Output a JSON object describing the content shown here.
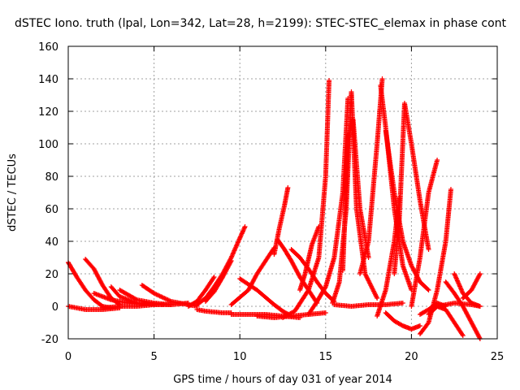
{
  "chart_data": {
    "type": "scatter",
    "title": "dSTEC Iono. truth (lpal, Lon=342, Lat=28, h=2199): STEC-STEC_elemax in phase cont",
    "xlabel": "GPS time / hours of day 031 of year 2014",
    "ylabel": "dSTEC  / TECUs",
    "xlim": [
      0,
      25
    ],
    "ylim": [
      -20,
      160
    ],
    "xticks": [
      0,
      5,
      10,
      15,
      20,
      25
    ],
    "yticks": [
      -20,
      0,
      20,
      40,
      60,
      80,
      100,
      120,
      140,
      160
    ],
    "grid": true,
    "marker": "plus",
    "color": "#ff0000",
    "arcs": [
      {
        "x": [
          0.0,
          0.5,
          1.0,
          1.5,
          2.0,
          2.5
        ],
        "y": [
          27,
          18,
          10,
          4,
          0,
          -1
        ]
      },
      {
        "x": [
          1.0,
          1.5,
          2.0,
          2.5,
          3.0
        ],
        "y": [
          29,
          23,
          13,
          5,
          1
        ]
      },
      {
        "x": [
          0.0,
          0.5,
          1.0,
          2.0,
          3.0
        ],
        "y": [
          0,
          -1,
          -2,
          -2,
          -1
        ]
      },
      {
        "x": [
          1.5,
          2.5,
          3.5,
          4.5
        ],
        "y": [
          8,
          4,
          2,
          1
        ]
      },
      {
        "x": [
          2.5,
          3.0,
          4.0,
          5.5
        ],
        "y": [
          12,
          6,
          2,
          1
        ]
      },
      {
        "x": [
          3.0,
          4.0,
          5.0,
          6.0
        ],
        "y": [
          10,
          4,
          2,
          1
        ]
      },
      {
        "x": [
          4.3,
          5.0,
          6.0,
          7.0,
          7.5
        ],
        "y": [
          13,
          8,
          3,
          1,
          0
        ]
      },
      {
        "x": [
          2.0,
          3.0,
          4.0,
          5.0,
          6.0,
          7.0
        ],
        "y": [
          -1,
          0,
          0,
          1,
          1,
          2
        ]
      },
      {
        "x": [
          7.0,
          7.5,
          8.0,
          8.5
        ],
        "y": [
          0,
          3,
          10,
          18
        ]
      },
      {
        "x": [
          7.5,
          8.0,
          8.5,
          9.0,
          9.5,
          10.0,
          10.3
        ],
        "y": [
          1,
          5,
          12,
          20,
          30,
          42,
          49
        ]
      },
      {
        "x": [
          8.0,
          8.5,
          9.0,
          9.5
        ],
        "y": [
          3,
          9,
          18,
          28
        ]
      },
      {
        "x": [
          7.5,
          8.0,
          9.0,
          9.5
        ],
        "y": [
          -2,
          -3,
          -4,
          -4
        ]
      },
      {
        "x": [
          9.5,
          10.5,
          11.5,
          12.5,
          13.5
        ],
        "y": [
          -5,
          -5,
          -5,
          -6,
          -7
        ]
      },
      {
        "x": [
          9.5,
          10.5,
          11.0,
          11.5,
          12.0
        ],
        "y": [
          1,
          10,
          20,
          28,
          36
        ]
      },
      {
        "x": [
          10.0,
          11.0,
          12.0,
          12.5,
          13.0
        ],
        "y": [
          17,
          10,
          1,
          -3,
          -6
        ]
      },
      {
        "x": [
          12.0,
          12.3,
          12.6,
          12.8
        ],
        "y": [
          32,
          48,
          62,
          73
        ]
      },
      {
        "x": [
          12.2,
          12.6,
          13.0,
          13.5,
          14.0,
          14.5
        ],
        "y": [
          41,
          35,
          28,
          18,
          10,
          2
        ]
      },
      {
        "x": [
          11.0,
          12.0,
          13.0,
          14.0,
          15.0
        ],
        "y": [
          -6,
          -7,
          -6,
          -5,
          -4
        ]
      },
      {
        "x": [
          13.5,
          13.8,
          14.2,
          14.6
        ],
        "y": [
          10,
          20,
          38,
          49
        ]
      },
      {
        "x": [
          13.0,
          13.5,
          14.0,
          14.5,
          15.0,
          15.5
        ],
        "y": [
          35,
          30,
          23,
          15,
          8,
          3
        ]
      },
      {
        "x": [
          12.5,
          13.2,
          14.0,
          14.6,
          15.0,
          15.2
        ],
        "y": [
          -7,
          -3,
          10,
          30,
          80,
          139
        ]
      },
      {
        "x": [
          14.0,
          14.5,
          15.0,
          15.5,
          16.0,
          16.3
        ],
        "y": [
          -5,
          3,
          12,
          30,
          70,
          128
        ]
      },
      {
        "x": [
          15.4,
          15.8,
          16.2,
          16.5,
          16.8,
          17.3,
          18.0
        ],
        "y": [
          2,
          15,
          60,
          132,
          60,
          20,
          5
        ]
      },
      {
        "x": [
          16.0,
          16.3,
          16.6,
          17.0,
          17.5
        ],
        "y": [
          22,
          103,
          115,
          60,
          30
        ]
      },
      {
        "x": [
          15.5,
          16.5,
          17.5,
          18.5,
          19.5
        ],
        "y": [
          1,
          0,
          1,
          1,
          2
        ]
      },
      {
        "x": [
          17.0,
          17.5,
          18.0,
          18.3
        ],
        "y": [
          20,
          40,
          100,
          140
        ]
      },
      {
        "x": [
          18.2,
          18.5,
          19.0,
          19.5,
          20.0
        ],
        "y": [
          136,
          110,
          60,
          25,
          10
        ]
      },
      {
        "x": [
          18.5,
          19.0,
          19.5,
          20.0,
          20.5,
          21.0
        ],
        "y": [
          108,
          70,
          40,
          25,
          15,
          10
        ]
      },
      {
        "x": [
          18.5,
          19.0,
          19.5,
          20.0,
          20.5
        ],
        "y": [
          -4,
          -9,
          -12,
          -14,
          -12
        ]
      },
      {
        "x": [
          18.0,
          18.5,
          19.0,
          19.3
        ],
        "y": [
          -6,
          10,
          40,
          67
        ]
      },
      {
        "x": [
          19.0,
          19.3,
          19.6,
          20.0,
          20.5,
          21.0
        ],
        "y": [
          20,
          55,
          125,
          100,
          65,
          35
        ]
      },
      {
        "x": [
          20.0,
          20.5,
          21.0,
          21.5
        ],
        "y": [
          0,
          30,
          70,
          90
        ]
      },
      {
        "x": [
          20.5,
          21.0,
          21.5,
          22.0,
          22.3
        ],
        "y": [
          -17,
          -10,
          10,
          40,
          72
        ]
      },
      {
        "x": [
          20.5,
          21.0,
          21.5,
          22.0
        ],
        "y": [
          -5,
          -2,
          2,
          0
        ]
      },
      {
        "x": [
          21.0,
          21.5,
          22.0,
          22.5,
          23.0
        ],
        "y": [
          -5,
          0,
          -2,
          -10,
          -18
        ]
      },
      {
        "x": [
          22.0,
          22.5,
          23.0,
          23.5,
          24.0
        ],
        "y": [
          15,
          8,
          0,
          -10,
          -20
        ]
      },
      {
        "x": [
          22.5,
          23.0,
          23.5,
          24.0
        ],
        "y": [
          20,
          8,
          2,
          0
        ]
      },
      {
        "x": [
          23.0,
          23.5,
          24.0
        ],
        "y": [
          5,
          10,
          20
        ]
      },
      {
        "x": [
          21.5,
          22.5,
          23.5,
          24.0
        ],
        "y": [
          0,
          2,
          1,
          0
        ]
      }
    ]
  }
}
